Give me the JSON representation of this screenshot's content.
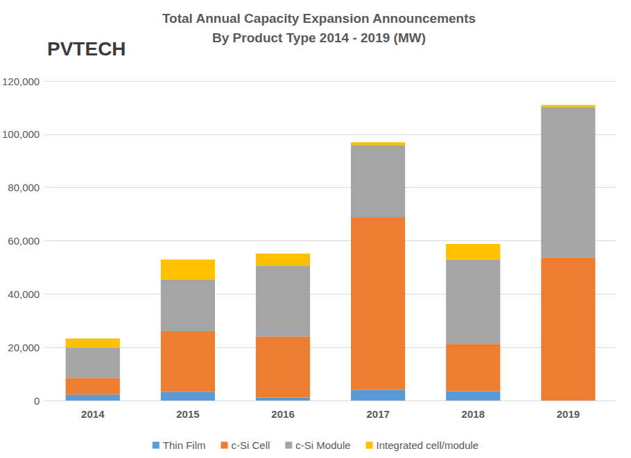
{
  "chart_data": {
    "type": "bar",
    "title": "Total Annual Capacity Expansion Announcements",
    "subtitle": "By Product Type 2014 - 2019 (MW)",
    "annotations": [
      "PVTECH"
    ],
    "categories": [
      "2014",
      "2015",
      "2016",
      "2017",
      "2018",
      "2019"
    ],
    "stacked": true,
    "grid": true,
    "legend": "bottom",
    "ylim": [
      0,
      120000
    ],
    "yticks": [
      0,
      20000,
      40000,
      60000,
      80000,
      100000,
      120000
    ],
    "series": [
      {
        "name": "Thin Film",
        "color": "#5b9bd5",
        "values": [
          2200,
          3200,
          1200,
          4000,
          3500,
          0
        ]
      },
      {
        "name": "c-Si Cell",
        "color": "#ed7d31",
        "values": [
          6300,
          22800,
          22800,
          64700,
          17800,
          53700
        ]
      },
      {
        "name": "c-Si Module",
        "color": "#a5a5a5",
        "values": [
          11300,
          19500,
          26700,
          27300,
          31700,
          56600
        ]
      },
      {
        "name": "Integrated cell/module",
        "color": "#ffc000",
        "values": [
          3500,
          7500,
          4500,
          1000,
          5800,
          700
        ]
      }
    ]
  }
}
